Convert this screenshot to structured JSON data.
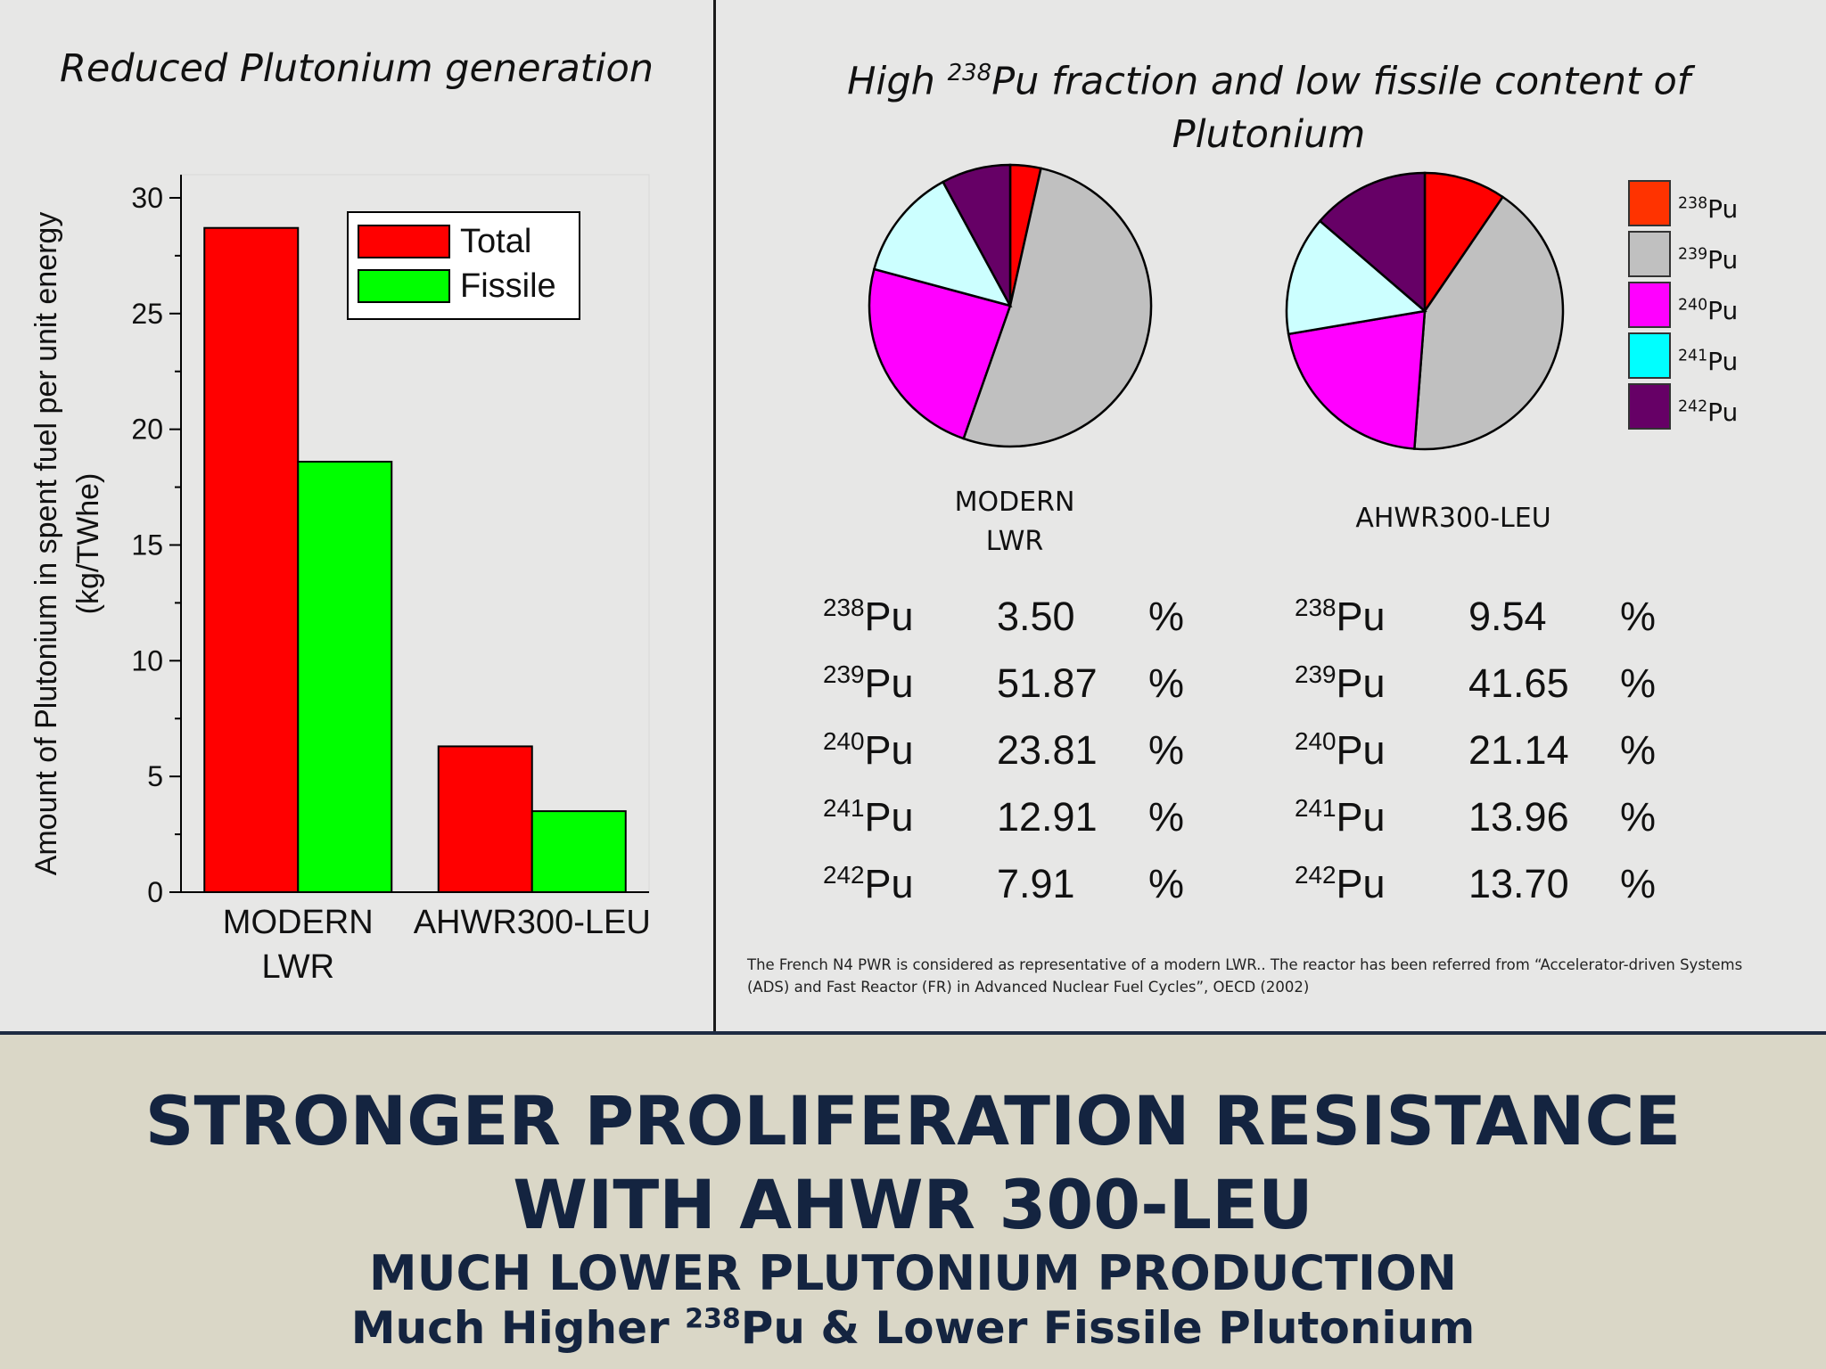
{
  "left_title": "Reduced Plutonium generation",
  "right_title": {
    "pre": "High ",
    "sup": "238",
    "post": "Pu fraction and low fissile content of Plutonium"
  },
  "chart_data": [
    {
      "type": "bar",
      "categories": [
        [
          "MODERN",
          "LWR"
        ],
        [
          "AHWR300-LEU"
        ]
      ],
      "series": [
        {
          "name": "Total",
          "color": "#ff0000",
          "values": [
            28.7,
            6.3
          ]
        },
        {
          "name": "Fissile",
          "color": "#00ff00",
          "values": [
            18.6,
            3.5
          ]
        }
      ],
      "ylabel_line1": "Amount of Plutonium in spent fuel per unit energy",
      "ylabel_line2": "(kg/TWhe)",
      "ylim": [
        0,
        31
      ],
      "yticks": [
        0,
        5,
        10,
        15,
        20,
        25,
        30
      ],
      "legend_placement": "top-right",
      "grid": false
    },
    {
      "type": "pie",
      "caption": [
        "MODERN",
        "LWR"
      ],
      "labels": [
        "238Pu",
        "239Pu",
        "240Pu",
        "241Pu",
        "242Pu"
      ],
      "values": [
        3.5,
        51.87,
        23.81,
        12.91,
        7.91
      ]
    },
    {
      "type": "pie",
      "caption": [
        "AHWR300-LEU"
      ],
      "labels": [
        "238Pu",
        "239Pu",
        "240Pu",
        "241Pu",
        "242Pu"
      ],
      "values": [
        9.54,
        41.65,
        21.14,
        13.96,
        13.7
      ]
    }
  ],
  "pie_colors": [
    "#ff0000",
    "#c0c0c0",
    "#ff00ff",
    "#ccffff",
    "#660066"
  ],
  "legend": [
    {
      "sup": "238",
      "text": "Pu",
      "color": "#ff3300"
    },
    {
      "sup": "239",
      "text": "Pu",
      "color": "#c0c0c0"
    },
    {
      "sup": "240",
      "text": "Pu",
      "color": "#ff00ff"
    },
    {
      "sup": "241",
      "text": "Pu",
      "color": "#00ffff"
    },
    {
      "sup": "242",
      "text": "Pu",
      "color": "#660066"
    }
  ],
  "tables": {
    "lwr": [
      {
        "sup": "238",
        "iso": "Pu",
        "value": "3.50",
        "unit": "%"
      },
      {
        "sup": "239",
        "iso": "Pu",
        "value": "51.87",
        "unit": "%"
      },
      {
        "sup": "240",
        "iso": "Pu",
        "value": "23.81",
        "unit": "%"
      },
      {
        "sup": "241",
        "iso": "Pu",
        "value": "12.91",
        "unit": "%"
      },
      {
        "sup": "242",
        "iso": "Pu",
        "value": "7.91",
        "unit": "%"
      }
    ],
    "ahwr": [
      {
        "sup": "238",
        "iso": "Pu",
        "value": "9.54",
        "unit": "%"
      },
      {
        "sup": "239",
        "iso": "Pu",
        "value": "41.65",
        "unit": "%"
      },
      {
        "sup": "240",
        "iso": "Pu",
        "value": "21.14",
        "unit": "%"
      },
      {
        "sup": "241",
        "iso": "Pu",
        "value": "13.96",
        "unit": "%"
      },
      {
        "sup": "242",
        "iso": "Pu",
        "value": "13.70",
        "unit": "%"
      }
    ]
  },
  "footnote": "The French N4 PWR is considered as representative of a modern LWR.. The reactor has been referred from “Accelerator-driven Systems (ADS) and Fast Reactor (FR) in Advanced Nuclear Fuel Cycles”, OECD (2002)",
  "banner": {
    "line1": "STRONGER PROLIFERATION RESISTANCE",
    "line2": "WITH AHWR 300-LEU",
    "line3": "MUCH LOWER PLUTONIUM PRODUCTION",
    "line4_pre": "Much Higher ",
    "line4_sup": "238",
    "line4_post": "Pu & Lower Fissile Plutonium"
  }
}
